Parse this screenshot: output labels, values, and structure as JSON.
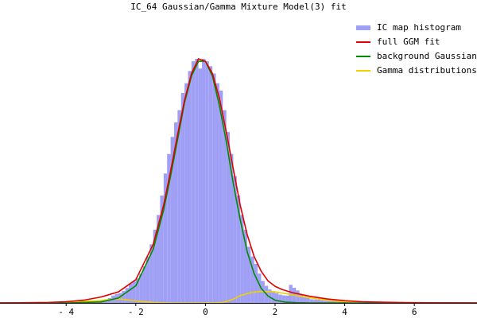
{
  "chart_data": {
    "type": "bar",
    "title": "IC_64 Gaussian/Gamma Mixture Model(3) fit",
    "xlabel": "",
    "ylabel": "",
    "xlim": [
      -5.9,
      7.8
    ],
    "ylim": [
      0,
      1.03
    ],
    "x_ticks": [
      -4,
      -2,
      0,
      2,
      4,
      6
    ],
    "x_tick_labels": [
      "- 4",
      "- 2",
      "0",
      "2",
      "4",
      "6"
    ],
    "legend_position": "top-right",
    "colors": {
      "histogram": "#9f9ff5",
      "full_fit": "#e00000",
      "background": "#008a00",
      "gamma": "#f0d000"
    },
    "series": [
      {
        "name": "IC map histogram",
        "kind": "histogram",
        "bin_width": 0.1,
        "x": [
          -3.4,
          -3.3,
          -3.2,
          -3.1,
          -3.0,
          -2.9,
          -2.8,
          -2.7,
          -2.6,
          -2.5,
          -2.4,
          -2.3,
          -2.2,
          -2.1,
          -2.0,
          -1.9,
          -1.8,
          -1.7,
          -1.6,
          -1.5,
          -1.4,
          -1.3,
          -1.2,
          -1.1,
          -1.0,
          -0.9,
          -0.8,
          -0.7,
          -0.6,
          -0.5,
          -0.4,
          -0.3,
          -0.2,
          -0.1,
          0.0,
          0.1,
          0.2,
          0.3,
          0.4,
          0.5,
          0.6,
          0.7,
          0.8,
          0.9,
          1.0,
          1.1,
          1.2,
          1.3,
          1.4,
          1.5,
          1.6,
          1.7,
          1.8,
          1.9,
          2.0,
          2.1,
          2.2,
          2.3,
          2.4,
          2.5,
          2.6,
          2.7,
          2.8,
          2.9,
          3.0,
          3.1,
          3.2,
          3.3,
          3.4,
          3.5,
          3.6,
          3.7,
          3.8,
          3.9,
          4.0,
          4.2,
          4.4,
          4.6,
          4.8,
          5.0,
          5.2,
          5.4,
          5.6,
          5.8,
          6.0,
          6.2,
          6.4,
          6.6
        ],
        "values": [
          0.002,
          0.004,
          0.006,
          0.008,
          0.011,
          0.015,
          0.02,
          0.03,
          0.036,
          0.04,
          0.049,
          0.061,
          0.079,
          0.088,
          0.1,
          0.12,
          0.15,
          0.19,
          0.24,
          0.3,
          0.36,
          0.44,
          0.53,
          0.61,
          0.68,
          0.74,
          0.79,
          0.86,
          0.9,
          0.95,
          0.99,
          1.0,
          0.96,
          1.0,
          0.99,
          0.97,
          0.94,
          0.9,
          0.87,
          0.79,
          0.7,
          0.61,
          0.52,
          0.44,
          0.36,
          0.3,
          0.23,
          0.19,
          0.16,
          0.12,
          0.09,
          0.07,
          0.055,
          0.048,
          0.04,
          0.034,
          0.031,
          0.03,
          0.074,
          0.062,
          0.051,
          0.037,
          0.028,
          0.022,
          0.015,
          0.014,
          0.013,
          0.011,
          0.009,
          0.008,
          0.007,
          0.006,
          0.005,
          0.004,
          0.003,
          0.003,
          0.002,
          0.002,
          0.002,
          0.002,
          0.002,
          0.003,
          0.003,
          0.002,
          0.002,
          0.002,
          0.002,
          0.002
        ]
      },
      {
        "name": "full GGM fit",
        "kind": "line",
        "x": [
          -5.9,
          -4.5,
          -4.0,
          -3.5,
          -3.0,
          -2.5,
          -2.0,
          -1.5,
          -1.2,
          -1.0,
          -0.8,
          -0.6,
          -0.4,
          -0.2,
          0.0,
          0.2,
          0.4,
          0.6,
          0.8,
          1.0,
          1.2,
          1.4,
          1.6,
          1.8,
          2.0,
          2.2,
          2.5,
          3.0,
          3.5,
          4.0,
          4.5,
          5.0,
          6.0,
          7.8
        ],
        "values": [
          0.0,
          0.002,
          0.005,
          0.011,
          0.024,
          0.045,
          0.095,
          0.24,
          0.4,
          0.54,
          0.69,
          0.83,
          0.94,
          1.0,
          0.99,
          0.94,
          0.84,
          0.7,
          0.55,
          0.4,
          0.28,
          0.19,
          0.13,
          0.09,
          0.068,
          0.055,
          0.042,
          0.027,
          0.016,
          0.009,
          0.005,
          0.003,
          0.001,
          0.0
        ]
      },
      {
        "name": "background Gaussian",
        "kind": "line",
        "x": [
          -5.9,
          -4.0,
          -3.0,
          -2.5,
          -2.0,
          -1.5,
          -1.2,
          -1.0,
          -0.8,
          -0.6,
          -0.4,
          -0.2,
          0.0,
          0.2,
          0.4,
          0.6,
          0.8,
          1.0,
          1.2,
          1.4,
          1.6,
          1.8,
          2.0,
          2.3,
          2.6,
          3.0,
          3.5,
          7.8
        ],
        "values": [
          0.0,
          0.0,
          0.004,
          0.02,
          0.07,
          0.22,
          0.38,
          0.52,
          0.67,
          0.82,
          0.93,
          0.99,
          0.99,
          0.93,
          0.81,
          0.66,
          0.49,
          0.34,
          0.21,
          0.12,
          0.06,
          0.028,
          0.011,
          0.003,
          0.001,
          0.0,
          0.0,
          0.0
        ]
      },
      {
        "name": "Gamma distributions",
        "kind": "line",
        "x": [
          -5.9,
          -4.0,
          -3.0,
          -2.5,
          -2.0,
          -1.5,
          -1.0,
          -0.5,
          0.0,
          0.5,
          0.8,
          1.0,
          1.3,
          1.6,
          2.0,
          2.3,
          2.6,
          3.0,
          3.5,
          4.0,
          5.0,
          7.8
        ],
        "values": [
          0.0,
          0.002,
          0.01,
          0.017,
          0.008,
          0.002,
          0.0,
          0.0,
          0.0,
          0.002,
          0.015,
          0.03,
          0.042,
          0.047,
          0.045,
          0.038,
          0.03,
          0.021,
          0.011,
          0.005,
          0.001,
          0.0
        ]
      }
    ]
  }
}
